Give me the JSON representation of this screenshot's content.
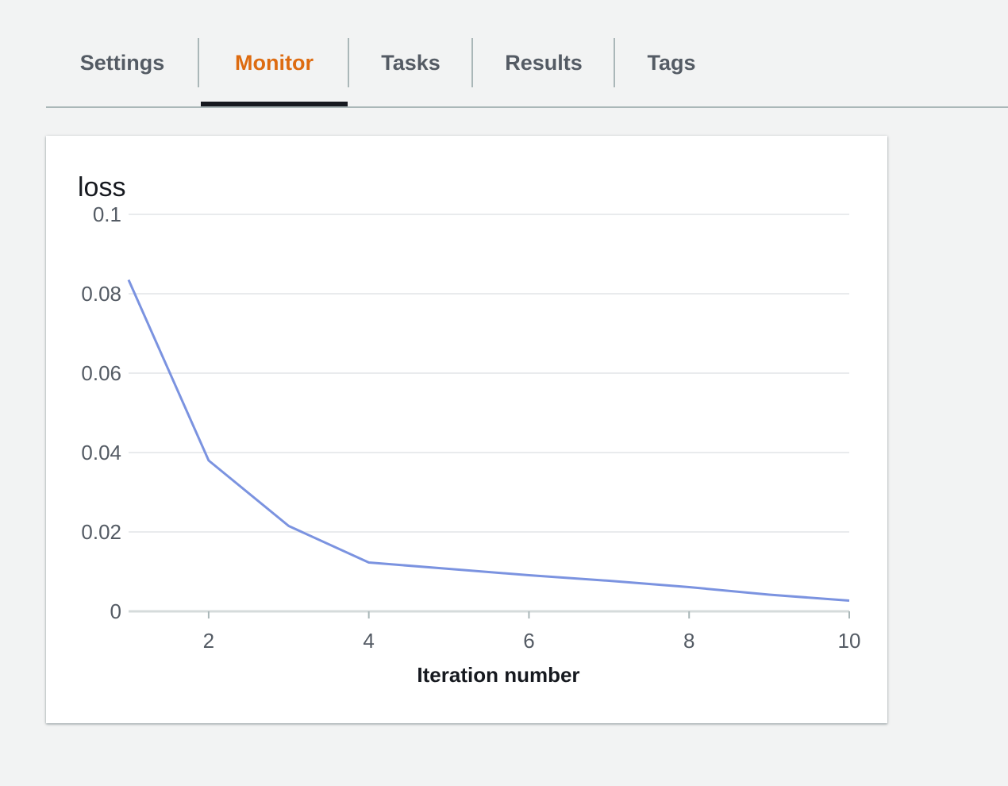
{
  "tabs": [
    {
      "label": "Settings",
      "active": false
    },
    {
      "label": "Monitor",
      "active": true
    },
    {
      "label": "Tasks",
      "active": false
    },
    {
      "label": "Results",
      "active": false
    },
    {
      "label": "Tags",
      "active": false
    }
  ],
  "colors": {
    "active_tab": "#dd6b10",
    "inactive_tab": "#545b64",
    "series_line": "#7b93e0"
  },
  "chart_data": {
    "type": "line",
    "title": "",
    "ylabel": "loss",
    "xlabel": "Iteration number",
    "xlim": [
      1,
      10
    ],
    "ylim": [
      0,
      0.1
    ],
    "x_ticks": [
      2,
      4,
      6,
      8,
      10
    ],
    "y_ticks": [
      0,
      0.02,
      0.04,
      0.06,
      0.08,
      0.1
    ],
    "y_tick_labels": [
      "0",
      "0.02",
      "0.04",
      "0.06",
      "0.08",
      "0.1"
    ],
    "grid": true,
    "series": [
      {
        "x": [
          1,
          2,
          3,
          4,
          5,
          6,
          7,
          8,
          9,
          10
        ],
        "values": [
          0.0835,
          0.038,
          0.0215,
          0.0123,
          0.0107,
          0.0091,
          0.0077,
          0.0061,
          0.0042,
          0.0027
        ]
      }
    ]
  }
}
